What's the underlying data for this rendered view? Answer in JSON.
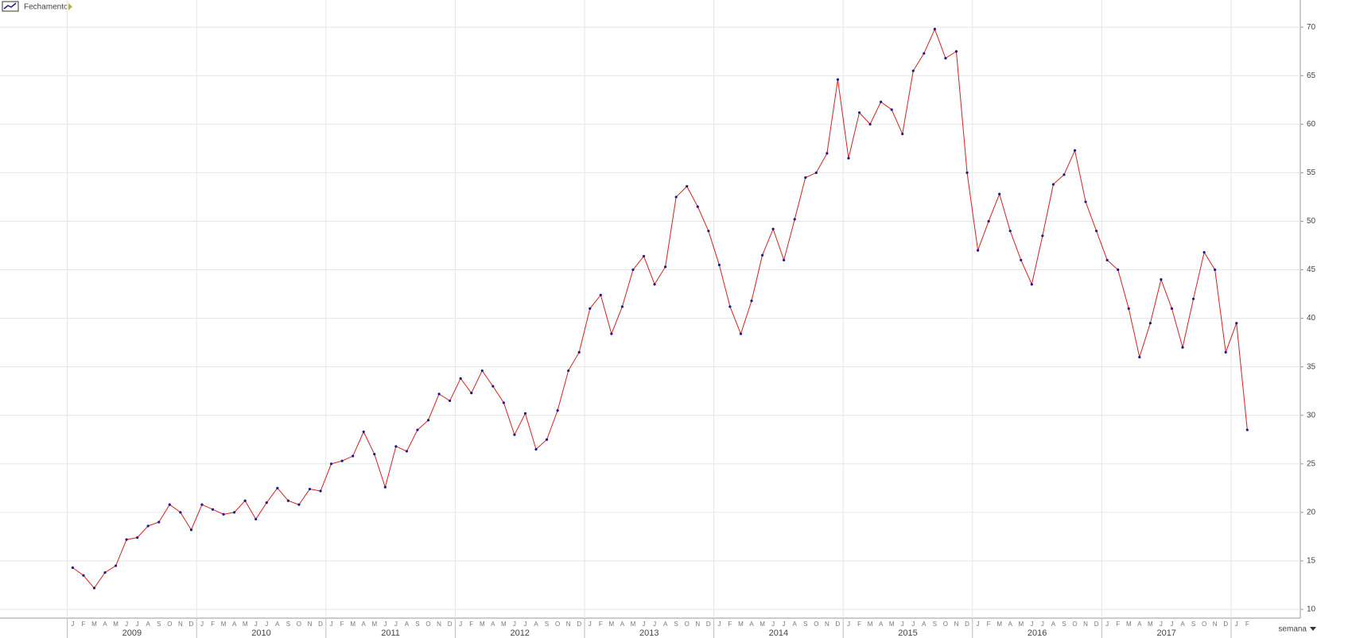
{
  "chart_data": {
    "type": "line",
    "legend_label": "Fechamento",
    "period_selector": "semana",
    "categories": [
      "J",
      "F",
      "M",
      "A",
      "M",
      "J",
      "J",
      "A",
      "S",
      "O",
      "N",
      "D",
      "J",
      "F",
      "M",
      "A",
      "M",
      "J",
      "J",
      "A",
      "S",
      "O",
      "N",
      "D",
      "J",
      "F",
      "M",
      "A",
      "M",
      "J",
      "J",
      "A",
      "S",
      "O",
      "N",
      "D",
      "J",
      "F",
      "M",
      "A",
      "M",
      "J",
      "J",
      "A",
      "S",
      "O",
      "N",
      "D",
      "J",
      "F",
      "M",
      "A",
      "M",
      "J",
      "J",
      "A",
      "S",
      "O",
      "N",
      "D",
      "J",
      "F",
      "M",
      "A",
      "M",
      "J",
      "J",
      "A",
      "S",
      "O",
      "N",
      "D",
      "J",
      "F",
      "M",
      "A",
      "M",
      "J",
      "J",
      "A",
      "S",
      "O",
      "N",
      "D",
      "J",
      "F",
      "M",
      "A",
      "M",
      "J",
      "J",
      "A",
      "S",
      "O",
      "N",
      "D",
      "J",
      "F",
      "M",
      "A",
      "M",
      "J",
      "J",
      "A",
      "S",
      "O",
      "N",
      "D",
      "J",
      "F"
    ],
    "years": [
      "2009",
      "2010",
      "2011",
      "2012",
      "2013",
      "2014",
      "2015",
      "2016",
      "2017"
    ],
    "series": [
      {
        "name": "Fechamento",
        "color": "#d62020",
        "marker_color": "#1a1a8c",
        "values": [
          14.3,
          13.5,
          12.2,
          13.8,
          14.5,
          17.2,
          17.4,
          18.6,
          19,
          20.8,
          20,
          18.2,
          20.8,
          20.3,
          19.8,
          20,
          21.2,
          19.3,
          21,
          22.5,
          21.2,
          20.8,
          22.4,
          22.2,
          25,
          25.3,
          25.8,
          28.3,
          26,
          22.6,
          26.8,
          26.3,
          28.5,
          29.5,
          32.2,
          31.5,
          33.8,
          32.3,
          34.6,
          33,
          31.3,
          28,
          30.2,
          26.5,
          27.5,
          30.5,
          34.6,
          36.5,
          41,
          42.4,
          38.4,
          41.2,
          45,
          46.4,
          43.5,
          45.3,
          52.5,
          53.6,
          51.5,
          49,
          45.5,
          41.2,
          38.4,
          41.8,
          46.5,
          49.2,
          46,
          50.2,
          54.5,
          55,
          57,
          64.6,
          56.5,
          61.2,
          60,
          62.3,
          61.5,
          59,
          65.5,
          67.3,
          69.8,
          66.8,
          67.5,
          55,
          47,
          50,
          52.8,
          49,
          46,
          43.5,
          48.5,
          53.8,
          54.8,
          57.3,
          52,
          49,
          46,
          45,
          41,
          36,
          39.5,
          44,
          41,
          37,
          42,
          46.8,
          45,
          36.5,
          39.5,
          28.5
        ]
      }
    ],
    "ylim": [
      9.1,
      72.8
    ],
    "yticks": [
      10,
      15,
      20,
      25,
      30,
      35,
      40,
      45,
      50,
      55,
      60,
      65,
      70
    ],
    "grid": true
  }
}
